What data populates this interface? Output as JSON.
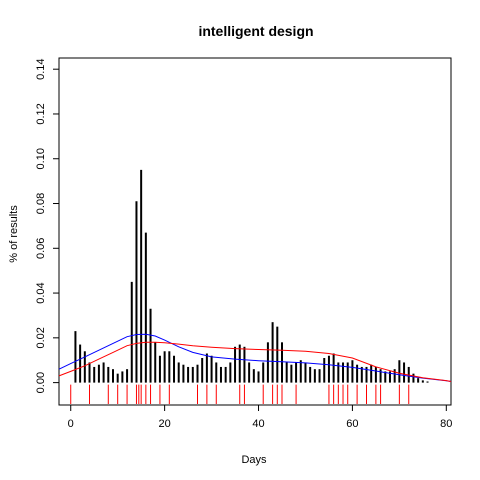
{
  "chart_data": {
    "type": "bar",
    "title": "intelligent design",
    "xlabel": "Days",
    "ylabel": "% of results",
    "xlim": [
      -2.5,
      81
    ],
    "ylim": [
      -0.01,
      0.145
    ],
    "x_ticks": [
      0,
      20,
      40,
      60,
      80
    ],
    "y_ticks": [
      0.0,
      0.02,
      0.04,
      0.06,
      0.08,
      0.1,
      0.12,
      0.14
    ],
    "x_tick_labels": [
      "0",
      "20",
      "40",
      "60",
      "80"
    ],
    "y_tick_labels": [
      "0.00",
      "0.02",
      "0.04",
      "0.06",
      "0.08",
      "0.10",
      "0.12",
      "0.14"
    ],
    "bars": {
      "x": [
        1,
        2,
        3,
        4,
        5,
        6,
        7,
        8,
        9,
        10,
        11,
        12,
        13,
        14,
        15,
        16,
        17,
        18,
        19,
        20,
        21,
        22,
        23,
        24,
        25,
        26,
        27,
        28,
        29,
        30,
        31,
        32,
        33,
        34,
        35,
        36,
        37,
        38,
        39,
        40,
        41,
        42,
        43,
        44,
        45,
        46,
        47,
        48,
        49,
        50,
        51,
        52,
        53,
        54,
        55,
        56,
        57,
        58,
        59,
        60,
        61,
        62,
        63,
        64,
        65,
        66,
        67,
        68,
        69,
        70,
        71,
        72,
        73,
        74,
        75,
        76
      ],
      "values": [
        0.023,
        0.017,
        0.014,
        0.009,
        0.007,
        0.008,
        0.009,
        0.007,
        0.006,
        0.004,
        0.005,
        0.006,
        0.045,
        0.081,
        0.095,
        0.067,
        0.033,
        0.018,
        0.012,
        0.014,
        0.014,
        0.012,
        0.009,
        0.008,
        0.007,
        0.007,
        0.008,
        0.011,
        0.013,
        0.012,
        0.009,
        0.007,
        0.007,
        0.009,
        0.016,
        0.017,
        0.016,
        0.009,
        0.006,
        0.005,
        0.009,
        0.018,
        0.027,
        0.025,
        0.018,
        0.009,
        0.008,
        0.009,
        0.01,
        0.009,
        0.007,
        0.006,
        0.006,
        0.011,
        0.012,
        0.013,
        0.009,
        0.009,
        0.009,
        0.01,
        0.008,
        0.007,
        0.007,
        0.008,
        0.007,
        0.006,
        0.005,
        0.005,
        0.006,
        0.01,
        0.009,
        0.007,
        0.004,
        0.002,
        0.001,
        0.0005
      ]
    },
    "rug": [
      0,
      4,
      8,
      10,
      12,
      14,
      14.5,
      15,
      16,
      17,
      19,
      21,
      27,
      29,
      31,
      36,
      37,
      41,
      43,
      44,
      45,
      48,
      55,
      56,
      57,
      58,
      59,
      61,
      63,
      65,
      66,
      70,
      72
    ],
    "series": [
      {
        "color": "#0000ff",
        "x": [
          -3,
          0,
          3,
          6,
          9,
          12,
          14,
          16,
          18,
          20,
          23,
          26,
          30,
          35,
          40,
          45,
          50,
          55,
          60,
          65,
          70,
          75,
          80,
          82
        ],
        "values": [
          0.006,
          0.0085,
          0.0115,
          0.0145,
          0.0175,
          0.0205,
          0.0215,
          0.0216,
          0.0208,
          0.019,
          0.016,
          0.0135,
          0.0115,
          0.0105,
          0.0098,
          0.0093,
          0.0088,
          0.008,
          0.0068,
          0.0052,
          0.0035,
          0.002,
          0.0008,
          0.0005
        ]
      },
      {
        "color": "#ff0000",
        "x": [
          -3,
          0,
          3,
          6,
          9,
          12,
          14,
          16,
          18,
          20,
          23,
          26,
          30,
          35,
          40,
          45,
          50,
          55,
          60,
          65,
          70,
          75,
          80,
          82
        ],
        "values": [
          0.003,
          0.005,
          0.0075,
          0.0105,
          0.0135,
          0.0165,
          0.0175,
          0.018,
          0.018,
          0.0178,
          0.0172,
          0.0165,
          0.0158,
          0.0152,
          0.0148,
          0.0145,
          0.014,
          0.013,
          0.011,
          0.007,
          0.0042,
          0.0022,
          0.0009,
          0.0005
        ]
      }
    ],
    "grid": false,
    "legend": "none"
  }
}
